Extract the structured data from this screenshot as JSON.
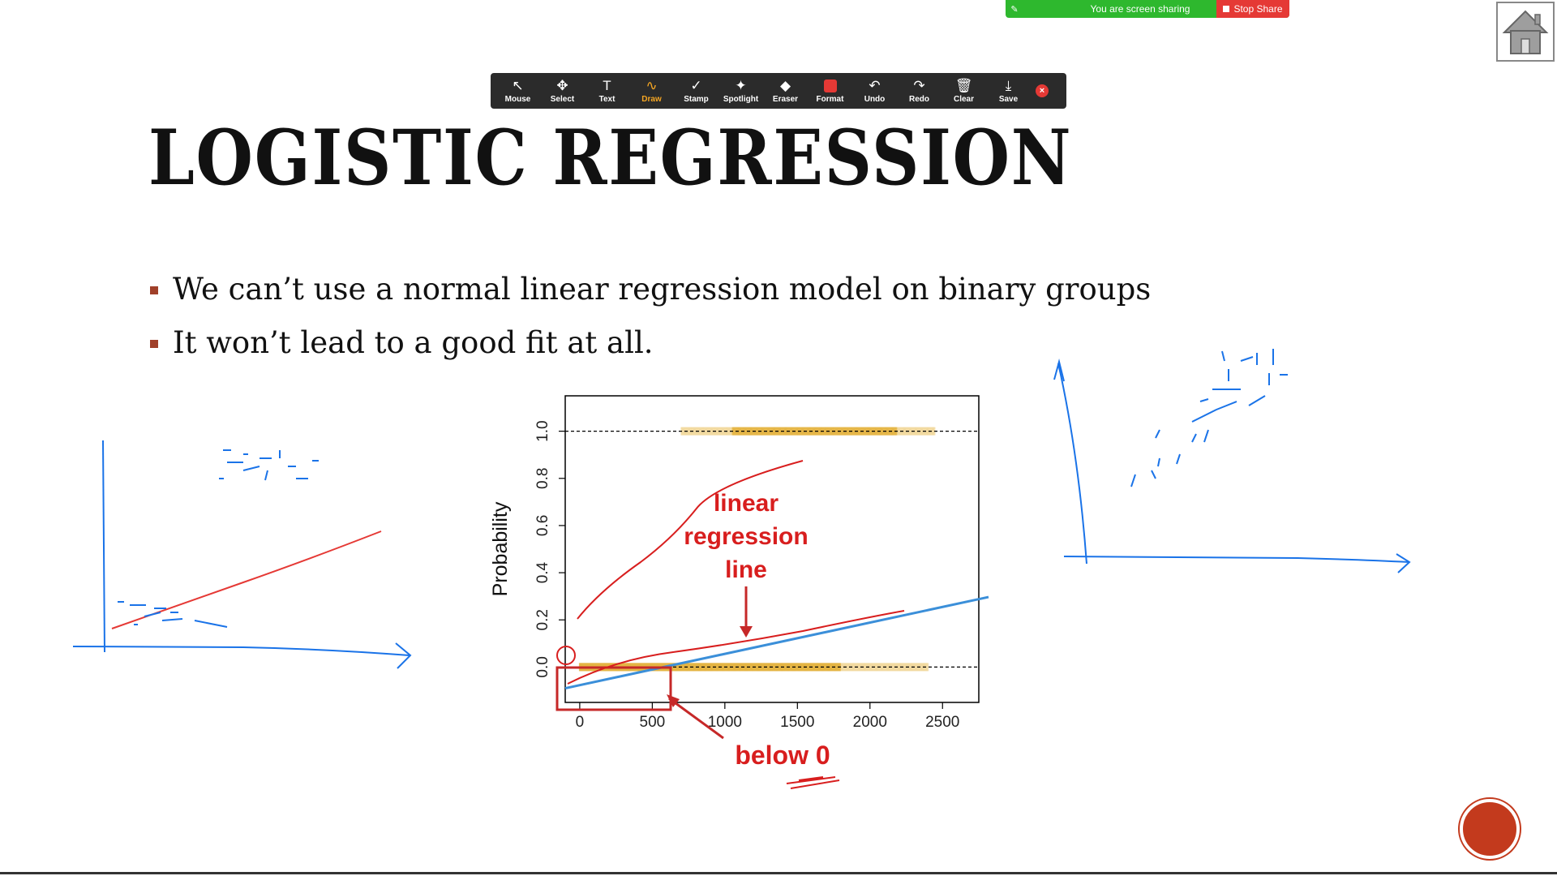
{
  "share_bar": {
    "message": "You are screen sharing",
    "stop_label": "Stop Share"
  },
  "toolbar": {
    "tools": [
      {
        "label": "Mouse",
        "glyph": "↖"
      },
      {
        "label": "Select",
        "glyph": "✥"
      },
      {
        "label": "Text",
        "glyph": "T"
      },
      {
        "label": "Draw",
        "glyph": "∿"
      },
      {
        "label": "Stamp",
        "glyph": "✓"
      },
      {
        "label": "Spotlight",
        "glyph": "✦"
      },
      {
        "label": "Eraser",
        "glyph": "◆"
      },
      {
        "label": "Format",
        "glyph": ""
      },
      {
        "label": "Undo",
        "glyph": "↶"
      },
      {
        "label": "Redo",
        "glyph": "↷"
      },
      {
        "label": "Clear",
        "glyph": "🗑"
      },
      {
        "label": "Save",
        "glyph": "⤓"
      }
    ],
    "active_tool": "Draw",
    "close_glyph": "×"
  },
  "slide": {
    "title": "LOGISTIC REGRESSION",
    "bullets": [
      "We can’t use a normal linear regression model on binary groups",
      "It won’t lead to a good fit at all."
    ]
  },
  "chart_data": {
    "type": "scatter",
    "ylabel": "Probability",
    "x_ticks": [
      0,
      500,
      1000,
      1500,
      2000,
      2500
    ],
    "y_ticks": [
      0.0,
      0.2,
      0.4,
      0.6,
      0.8,
      1.0
    ],
    "xlim": [
      -100,
      2750
    ],
    "ylim": [
      -0.15,
      1.15
    ],
    "reference_lines": [
      0.0,
      1.0
    ],
    "points_y1": {
      "y": 1.0,
      "x_range": [
        700,
        2450
      ]
    },
    "points_y0": {
      "y": 0.0,
      "x_range": [
        0,
        2400
      ]
    },
    "regression_line": {
      "x": [
        -100,
        2750
      ],
      "y": [
        -0.09,
        0.29
      ]
    },
    "annotations": [
      "linear regression line",
      "below 0"
    ]
  },
  "colors": {
    "accent_red": "#e53935",
    "bullet": "#a0402a",
    "points": "#e3b23c",
    "regression": "#3b8fd9",
    "ink_red": "#d81e1e",
    "ink_blue": "#1a73e8",
    "next_button": "#c33a1d"
  }
}
